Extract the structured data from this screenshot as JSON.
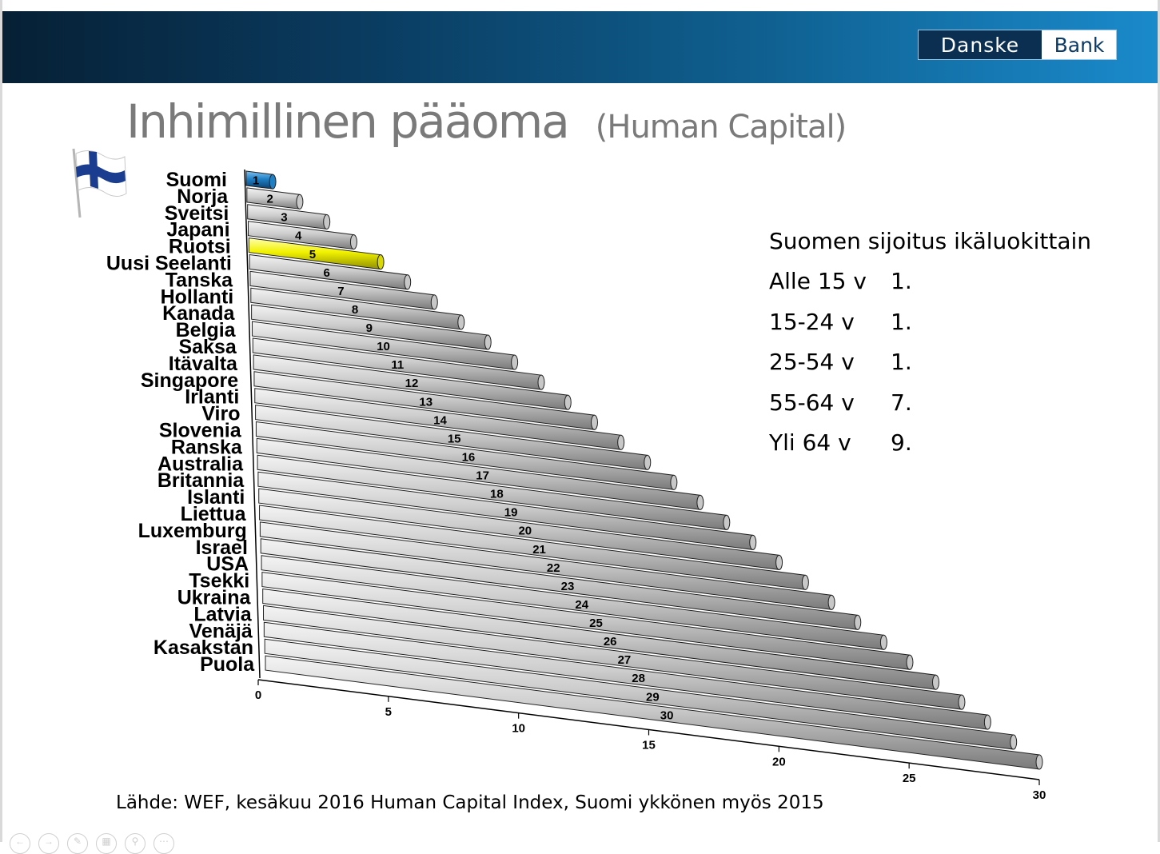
{
  "header": {
    "logo": {
      "part1": "Danske",
      "part2": "Bank"
    }
  },
  "title": {
    "main": "Inhimillinen pääoma",
    "sub": "(Human Capital)"
  },
  "chart_data": {
    "type": "bar",
    "orientation": "horizontal",
    "categories": [
      "Suomi",
      "Norja",
      "Sveitsi",
      "Japani",
      "Ruotsi",
      "Uusi Seelanti",
      "Tanska",
      "Hollanti",
      "Kanada",
      "Belgia",
      "Saksa",
      "Itävalta",
      "Singapore",
      "Irlanti",
      "Viro",
      "Slovenia",
      "Ranska",
      "Australia",
      "Britannia",
      "Islanti",
      "Liettua",
      "Luxemburg",
      "Israel",
      "USA",
      "Tsekki",
      "Ukraina",
      "Latvia",
      "Venäjä",
      "Kasakstan",
      "Puola"
    ],
    "values": [
      1,
      2,
      3,
      4,
      5,
      6,
      7,
      8,
      9,
      10,
      11,
      12,
      13,
      14,
      15,
      16,
      17,
      18,
      19,
      20,
      21,
      22,
      23,
      24,
      25,
      26,
      27,
      28,
      29,
      30
    ],
    "data_labels": [
      "1",
      "2",
      "3",
      "4",
      "5",
      "6",
      "7",
      "8",
      "9",
      "10",
      "11",
      "12",
      "13",
      "14",
      "15",
      "16",
      "17",
      "18",
      "19",
      "20",
      "21",
      "22",
      "23",
      "24",
      "25",
      "26",
      "27",
      "28",
      "29",
      "30"
    ],
    "xlim": [
      0,
      30
    ],
    "ticks": [
      "0",
      "5",
      "10",
      "15",
      "20",
      "25",
      "30"
    ],
    "highlight": {
      "Suomi": "#1f7fc4",
      "Ruotsi": "#f2f200"
    },
    "bar_color": "#c8c8c8",
    "style": "3d-cylinder"
  },
  "info_box": {
    "heading": "Suomen sijoitus ikäluokittain",
    "rows": [
      {
        "age": "Alle 15 v",
        "rank": "1."
      },
      {
        "age": "15-24 v",
        "rank": "1."
      },
      {
        "age": "25-54 v",
        "rank": "1."
      },
      {
        "age": "55-64 v",
        "rank": "7."
      },
      {
        "age": "Yli 64 v",
        "rank": "9."
      }
    ]
  },
  "source": "Lähde: WEF, kesäkuu 2016 Human Capital Index, Suomi ykkönen myös 2015",
  "icons": [
    "finland-flag-icon"
  ],
  "colors": {
    "header_dark": "#062035",
    "header_light": "#1a8acb",
    "title": "#7a7a7a"
  }
}
